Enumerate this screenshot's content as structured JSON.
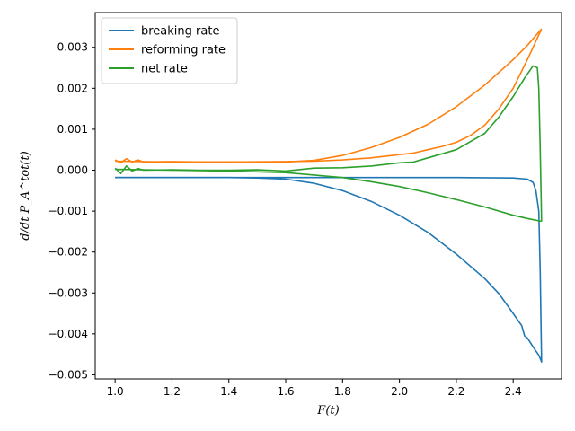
{
  "chart_data": {
    "type": "line",
    "xlabel": "F(t)",
    "ylabel": "d/dt P_A^tot(t)",
    "xlim": [
      0.93,
      2.57
    ],
    "ylim": [
      -0.0051,
      0.00385
    ],
    "xticks": [
      "1.0",
      "1.2",
      "1.4",
      "1.6",
      "1.8",
      "2.0",
      "2.2",
      "2.4"
    ],
    "xtick_values": [
      1.0,
      1.2,
      1.4,
      1.6,
      1.8,
      2.0,
      2.2,
      2.4
    ],
    "yticks": [
      "0.003",
      "0.002",
      "0.001",
      "0.000",
      "−0.001",
      "−0.002",
      "−0.003",
      "−0.004",
      "−0.005"
    ],
    "ytick_values": [
      0.003,
      0.002,
      0.001,
      0.0,
      -0.001,
      -0.002,
      -0.003,
      -0.004,
      -0.005
    ],
    "legend_position": "top-left",
    "grid": false,
    "series": [
      {
        "name": "breaking rate",
        "color": "#1f77b4",
        "x": [
          1.0,
          1.2,
          1.4,
          1.5,
          1.6,
          1.7,
          1.8,
          1.9,
          2.0,
          2.1,
          2.2,
          2.3,
          2.35,
          2.4,
          2.43,
          2.44,
          2.45,
          2.47,
          2.49,
          2.5
        ],
        "y": [
          -0.00018,
          -0.00018,
          -0.00018,
          -0.00019,
          -0.00022,
          -0.00032,
          -0.0005,
          -0.00076,
          -0.0011,
          -0.00152,
          -0.00205,
          -0.00265,
          -0.00302,
          -0.0035,
          -0.0038,
          -0.00405,
          -0.0041,
          -0.00432,
          -0.00452,
          -0.00468
        ]
      },
      {
        "name": "reforming rate",
        "color": "#ff7f0e",
        "x": [
          1.0,
          1.02,
          1.04,
          1.06,
          1.08,
          1.1,
          1.2,
          1.3,
          1.4,
          1.5,
          1.6,
          1.7,
          1.8,
          1.9,
          2.0,
          2.1,
          2.2,
          2.3,
          2.4,
          2.45,
          2.5
        ],
        "y": [
          0.00025,
          0.00018,
          0.00028,
          0.0002,
          0.00025,
          0.0002,
          0.00021,
          0.0002,
          0.0002,
          0.0002,
          0.0002,
          0.00024,
          0.00036,
          0.00055,
          0.0008,
          0.00112,
          0.00155,
          0.00208,
          0.0027,
          0.00305,
          0.00345
        ]
      },
      {
        "name": "net rate",
        "color": "#2ca02c",
        "x": [
          1.0,
          1.02,
          1.04,
          1.06,
          1.08,
          1.1,
          1.2,
          1.3,
          1.4,
          1.5,
          1.6,
          1.7,
          1.8,
          1.9,
          2.0,
          2.05,
          2.1,
          2.2,
          2.3,
          2.35,
          2.4,
          2.44,
          2.47,
          2.485,
          2.49,
          2.495,
          2.5
        ],
        "y": [
          5e-05,
          -8e-05,
          0.0001,
          -2e-05,
          4e-05,
          0.0,
          1e-05,
          0.0,
          0.0,
          1e-05,
          -2e-05,
          5e-05,
          6e-05,
          0.0001,
          0.00018,
          0.0002,
          0.0003,
          0.0005,
          0.0009,
          0.0013,
          0.0018,
          0.00225,
          0.00255,
          0.0025,
          0.002,
          0.0005,
          -0.00125
        ]
      },
      {
        "name": "breaking rate",
        "color": "#1f77b4",
        "x": [
          1.0,
          1.2,
          1.4,
          1.6,
          1.8,
          2.0,
          2.2,
          2.4,
          2.45,
          2.47,
          2.48,
          2.49,
          2.495,
          2.5
        ],
        "y": [
          -0.00018,
          -0.00018,
          -0.00018,
          -0.00018,
          -0.00018,
          -0.00018,
          -0.00018,
          -0.00019,
          -0.00022,
          -0.0003,
          -0.0005,
          -0.001,
          -0.0025,
          -0.0047
        ]
      },
      {
        "name": "reforming rate",
        "color": "#ff7f0e",
        "x": [
          1.0,
          1.2,
          1.4,
          1.6,
          1.7,
          1.8,
          1.9,
          2.0,
          2.05,
          2.1,
          2.15,
          2.2,
          2.25,
          2.3,
          2.35,
          2.4,
          2.45,
          2.5
        ],
        "y": [
          0.00022,
          0.0002,
          0.0002,
          0.00021,
          0.00022,
          0.00025,
          0.0003,
          0.00038,
          0.00042,
          0.0005,
          0.00058,
          0.00068,
          0.00085,
          0.0011,
          0.0015,
          0.002,
          0.0027,
          0.00345
        ]
      },
      {
        "name": "net rate",
        "color": "#2ca02c",
        "x": [
          1.0,
          1.2,
          1.4,
          1.6,
          1.8,
          1.9,
          2.0,
          2.1,
          2.2,
          2.3,
          2.4,
          2.45,
          2.5
        ],
        "y": [
          2e-05,
          0.0,
          -2e-05,
          -6e-05,
          -0.00018,
          -0.00028,
          -0.0004,
          -0.00055,
          -0.00072,
          -0.0009,
          -0.0011,
          -0.00118,
          -0.00125
        ]
      }
    ]
  }
}
